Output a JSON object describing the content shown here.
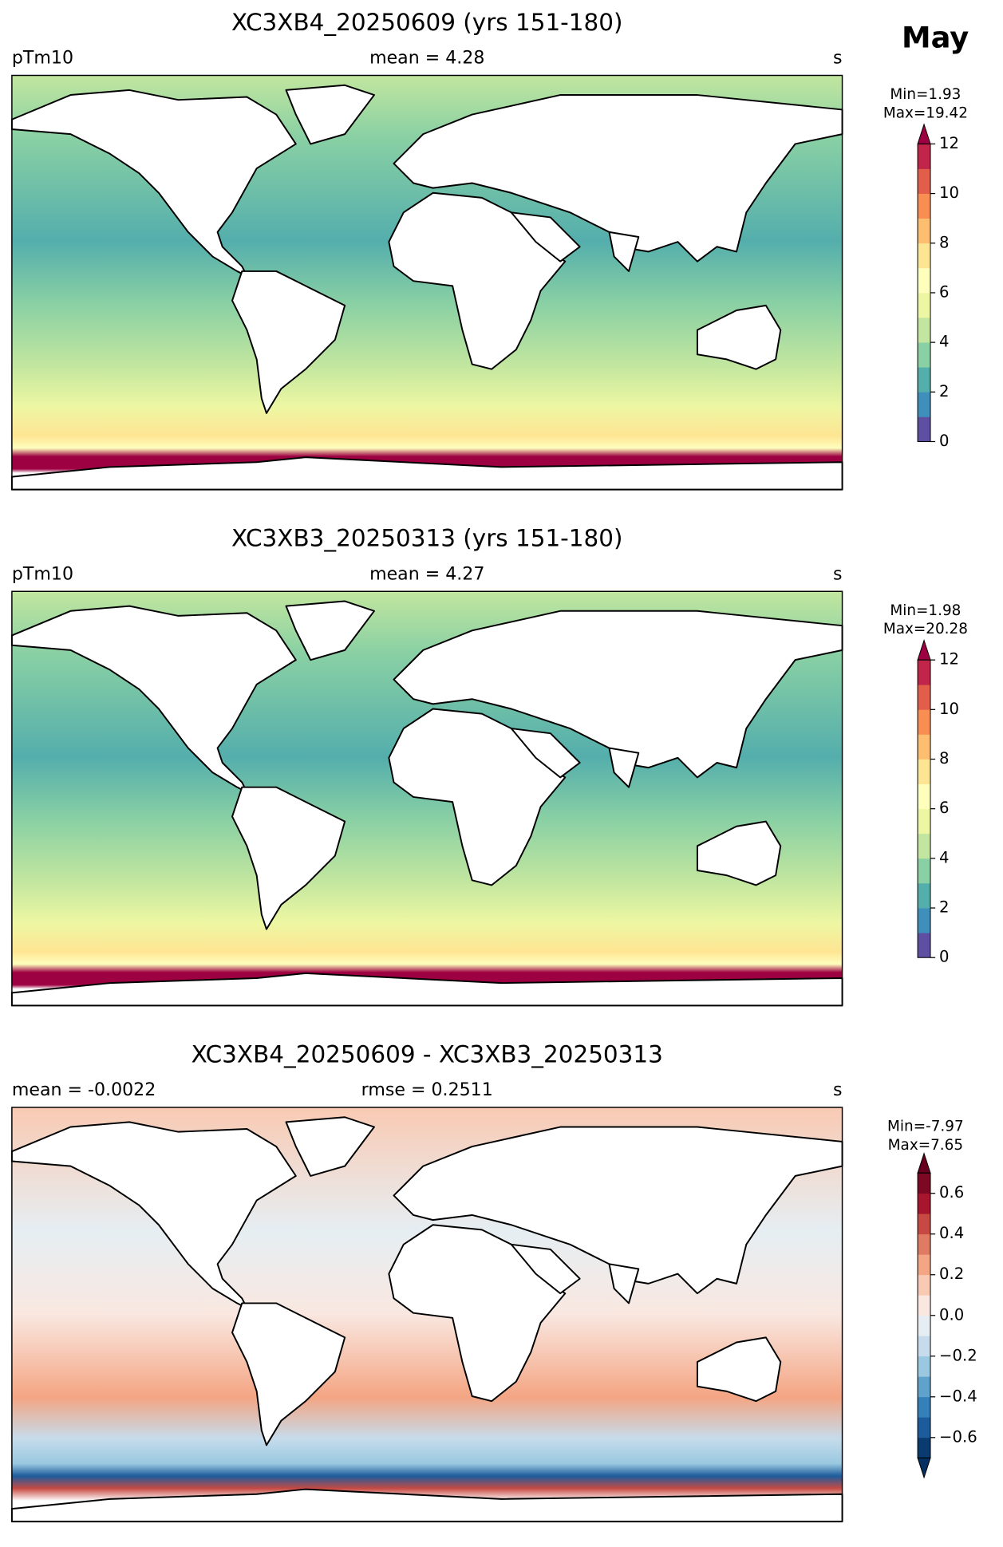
{
  "page": {
    "label": "May"
  },
  "chart_data": [
    {
      "type": "map",
      "title": "XC3XB4_20250609 (yrs 151-180)",
      "left_label": "pTm10",
      "center_label": "mean = 4.28",
      "units_label": "s",
      "min_label": "Min=1.93",
      "max_label": "Max=19.42",
      "colorbar": {
        "ylim": [
          0,
          12
        ],
        "yticks": [
          0,
          2,
          4,
          6,
          8,
          10,
          12
        ],
        "extend": "max",
        "colors": [
          "#5e4fa2",
          "#3f8fbc",
          "#54aeac",
          "#89d0a4",
          "#c2e69f",
          "#edf7a3",
          "#fefebd",
          "#fee593",
          "#fdbe6f",
          "#f88e52",
          "#e35e4a",
          "#c1254a"
        ],
        "over_color": "#9e0142",
        "under_color": "#5e4fa2"
      }
    },
    {
      "type": "map",
      "title": "XC3XB3_20250313 (yrs 151-180)",
      "left_label": "pTm10",
      "center_label": "mean = 4.27",
      "units_label": "s",
      "min_label": "Min=1.98",
      "max_label": "Max=20.28",
      "colorbar": {
        "ylim": [
          0,
          12
        ],
        "yticks": [
          0,
          2,
          4,
          6,
          8,
          10,
          12
        ],
        "extend": "max",
        "colors": [
          "#5e4fa2",
          "#3f8fbc",
          "#54aeac",
          "#89d0a4",
          "#c2e69f",
          "#edf7a3",
          "#fefebd",
          "#fee593",
          "#fdbe6f",
          "#f88e52",
          "#e35e4a",
          "#c1254a"
        ],
        "over_color": "#9e0142",
        "under_color": "#5e4fa2"
      }
    },
    {
      "type": "map",
      "title": "XC3XB4_20250609 - XC3XB3_20250313",
      "left_label": "mean = -0.0022",
      "center_label": "rmse = 0.2511",
      "units_label": "s",
      "min_label": "Min=-7.97",
      "max_label": "Max=7.65",
      "colorbar": {
        "ylim": [
          -0.7,
          0.7
        ],
        "yticks": [
          {
            "value": -0.6,
            "label": "−0.6"
          },
          {
            "value": -0.4,
            "label": "−0.4"
          },
          {
            "value": -0.2,
            "label": "−0.2"
          },
          {
            "value": 0,
            "label": "0.0"
          },
          0.2,
          0.4,
          0.6
        ],
        "extend": "both",
        "colors": [
          "#0a3b70",
          "#1c5c9c",
          "#3480b9",
          "#5fa2cb",
          "#9ac8e0",
          "#c6dcec",
          "#e6eef3",
          "#f9e7e0",
          "#f9cab3",
          "#f4a583",
          "#df7a63",
          "#c64a43",
          "#a7162c",
          "#7d0824"
        ],
        "over_color": "#67001f",
        "under_color": "#053061"
      }
    }
  ]
}
